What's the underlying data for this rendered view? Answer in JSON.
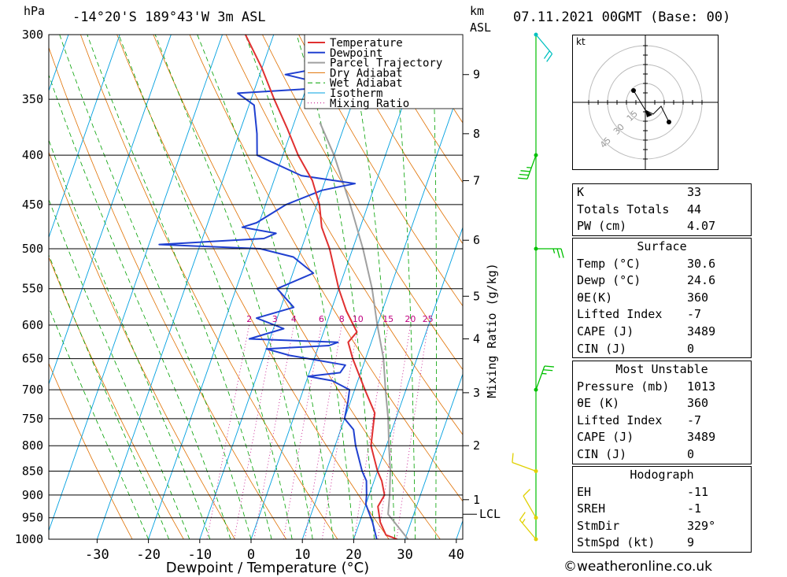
{
  "header": {
    "pressure_unit": "hPa",
    "location": "-14°20'S 189°43'W 3m ASL",
    "height_unit": "km",
    "height_ref": "ASL",
    "datetime": "07.11.2021 00GMT (Base: 00)"
  },
  "footer": {
    "copyright_icon": "copyright-icon",
    "site": "weatheronline.co.uk"
  },
  "chart_data": {
    "type": "line",
    "subtype": "skew-t log-p diagram",
    "xlabel": "Dewpoint / Temperature (°C)",
    "ylabel": "hPa",
    "mixing_ratio_label": "Mixing Ratio (g/kg)",
    "temperature_ticks": [
      -30,
      -20,
      -10,
      0,
      10,
      20,
      30,
      40
    ],
    "pressure_ticks": [
      300,
      350,
      400,
      450,
      500,
      550,
      600,
      650,
      700,
      750,
      800,
      850,
      900,
      950,
      1000
    ],
    "height_ticks_km": [
      {
        "km": "1",
        "p": 910
      },
      {
        "km": "2",
        "p": 800
      },
      {
        "km": "3",
        "p": 705
      },
      {
        "km": "4",
        "p": 620
      },
      {
        "km": "5",
        "p": 560
      },
      {
        "km": "6",
        "p": 490
      },
      {
        "km": "7",
        "p": 425
      },
      {
        "km": "8",
        "p": 380
      },
      {
        "km": "9",
        "p": 330
      }
    ],
    "lcl_label": "LCL",
    "lcl_pressure": 942,
    "mixing_ratio_values": [
      "2",
      "3",
      "4",
      "6",
      "8",
      "10",
      "15",
      "20",
      "25"
    ],
    "legend": [
      "Temperature",
      "Dewpoint",
      "Parcel Trajectory",
      "Dry Adiabat",
      "Wet Adiabat",
      "Isotherm",
      "Mixing Ratio"
    ],
    "legend_placement": "top-right",
    "colors": {
      "temperature": "#e03030",
      "dewpoint": "#2040d0",
      "parcel": "#a0a0a0",
      "dry_adiabat": "#e07000",
      "wet_adiabat": "#00a000",
      "isotherm": "#00a0e0",
      "mixing_ratio": "#c00080",
      "wind_barb": "#00c0c0"
    },
    "temperature_profile": [
      {
        "p": 1000,
        "t": 28.5
      },
      {
        "p": 990,
        "t": 26.0
      },
      {
        "p": 960,
        "t": 24.0
      },
      {
        "p": 925,
        "t": 22.5
      },
      {
        "p": 900,
        "t": 23.0
      },
      {
        "p": 870,
        "t": 21.5
      },
      {
        "p": 850,
        "t": 20.0
      },
      {
        "p": 800,
        "t": 17.0
      },
      {
        "p": 760,
        "t": 16.0
      },
      {
        "p": 740,
        "t": 15.5
      },
      {
        "p": 700,
        "t": 12.0
      },
      {
        "p": 650,
        "t": 7.5
      },
      {
        "p": 625,
        "t": 5.5
      },
      {
        "p": 610,
        "t": 6.5
      },
      {
        "p": 580,
        "t": 3.0
      },
      {
        "p": 550,
        "t": 0.0
      },
      {
        "p": 500,
        "t": -4.5
      },
      {
        "p": 475,
        "t": -7.5
      },
      {
        "p": 450,
        "t": -9.5
      },
      {
        "p": 425,
        "t": -12.5
      },
      {
        "p": 400,
        "t": -17.0
      },
      {
        "p": 375,
        "t": -21.0
      },
      {
        "p": 350,
        "t": -25.5
      },
      {
        "p": 325,
        "t": -30.0
      },
      {
        "p": 300,
        "t": -35.5
      }
    ],
    "dewpoint_profile": [
      {
        "p": 1000,
        "t": 24.5
      },
      {
        "p": 960,
        "t": 22.5
      },
      {
        "p": 920,
        "t": 20.0
      },
      {
        "p": 900,
        "t": 19.5
      },
      {
        "p": 870,
        "t": 18.5
      },
      {
        "p": 850,
        "t": 17.0
      },
      {
        "p": 800,
        "t": 14.0
      },
      {
        "p": 770,
        "t": 12.5
      },
      {
        "p": 750,
        "t": 10.0
      },
      {
        "p": 720,
        "t": 9.5
      },
      {
        "p": 700,
        "t": 9.0
      },
      {
        "p": 685,
        "t": 5.0
      },
      {
        "p": 678,
        "t": 0.0
      },
      {
        "p": 672,
        "t": 6.0
      },
      {
        "p": 660,
        "t": 6.5
      },
      {
        "p": 645,
        "t": -5.0
      },
      {
        "p": 635,
        "t": -10.0
      },
      {
        "p": 630,
        "t": 2.0
      },
      {
        "p": 625,
        "t": 3.5
      },
      {
        "p": 620,
        "t": -14.0
      },
      {
        "p": 605,
        "t": -8.0
      },
      {
        "p": 590,
        "t": -14.0
      },
      {
        "p": 575,
        "t": -7.5
      },
      {
        "p": 550,
        "t": -12.0
      },
      {
        "p": 530,
        "t": -6.0
      },
      {
        "p": 510,
        "t": -11.0
      },
      {
        "p": 500,
        "t": -18.0
      },
      {
        "p": 495,
        "t": -38.0
      },
      {
        "p": 488,
        "t": -18.0
      },
      {
        "p": 482,
        "t": -16.0
      },
      {
        "p": 475,
        "t": -23.0
      },
      {
        "p": 470,
        "t": -20.5
      },
      {
        "p": 450,
        "t": -16.0
      },
      {
        "p": 435,
        "t": -10.0
      },
      {
        "p": 428,
        "t": -4.0
      },
      {
        "p": 420,
        "t": -15.0
      },
      {
        "p": 400,
        "t": -25.0
      },
      {
        "p": 380,
        "t": -26.5
      },
      {
        "p": 355,
        "t": -29.0
      },
      {
        "p": 345,
        "t": -33.0
      },
      {
        "p": 340,
        "t": -14.0
      },
      {
        "p": 330,
        "t": -25.0
      },
      {
        "p": 320,
        "t": -12.0
      },
      {
        "p": 315,
        "t": -11.5
      },
      {
        "p": 300,
        "t": -9.0
      }
    ],
    "parcel_profile": [
      {
        "p": 1000,
        "t": 30.6
      },
      {
        "p": 942,
        "t": 25.0
      },
      {
        "p": 900,
        "t": 24.0
      },
      {
        "p": 850,
        "t": 22.5
      },
      {
        "p": 800,
        "t": 20.5
      },
      {
        "p": 750,
        "t": 18.5
      },
      {
        "p": 700,
        "t": 16.0
      },
      {
        "p": 650,
        "t": 13.5
      },
      {
        "p": 600,
        "t": 10.0
      },
      {
        "p": 550,
        "t": 6.5
      },
      {
        "p": 500,
        "t": 2.0
      },
      {
        "p": 450,
        "t": -3.5
      },
      {
        "p": 400,
        "t": -10.0
      },
      {
        "p": 370,
        "t": -15.0
      }
    ],
    "wind_profile": [
      {
        "p": 1000,
        "dir": 320,
        "kt": 5
      },
      {
        "p": 950,
        "dir": 330,
        "kt": 10
      },
      {
        "p": 850,
        "dir": 290,
        "kt": 10
      },
      {
        "p": 700,
        "dir": 20,
        "kt": 15
      },
      {
        "p": 500,
        "dir": 90,
        "kt": 15
      },
      {
        "p": 400,
        "dir": 200,
        "kt": 25
      },
      {
        "p": 300,
        "dir": 140,
        "kt": 20
      }
    ],
    "hodograph": {
      "unit": "kt",
      "ring_labels": [
        "15",
        "30",
        "45"
      ],
      "points": [
        {
          "u": -3,
          "v": 3
        },
        {
          "u": 0,
          "v": -2
        },
        {
          "u": 2,
          "v": -3
        },
        {
          "u": 4,
          "v": -1
        },
        {
          "u": 6,
          "v": -5
        }
      ],
      "storm_motion": {
        "u": 1,
        "v": -3
      }
    }
  },
  "indices": [
    {
      "key": "K",
      "value": "33"
    },
    {
      "key": "Totals Totals",
      "value": "44"
    },
    {
      "key": "PW (cm)",
      "value": "4.07"
    }
  ],
  "surface": {
    "title": "Surface",
    "rows": [
      {
        "key": "Temp (°C)",
        "value": "30.6"
      },
      {
        "key": "Dewp (°C)",
        "value": "24.6"
      },
      {
        "key": "θE(K)",
        "value": "360"
      },
      {
        "key": "Lifted Index",
        "value": "-7"
      },
      {
        "key": "CAPE (J)",
        "value": "3489"
      },
      {
        "key": "CIN (J)",
        "value": "0"
      }
    ]
  },
  "most_unstable": {
    "title": "Most Unstable",
    "rows": [
      {
        "key": "Pressure (mb)",
        "value": "1013"
      },
      {
        "key": "θE (K)",
        "value": "360"
      },
      {
        "key": "Lifted Index",
        "value": "-7"
      },
      {
        "key": "CAPE (J)",
        "value": "3489"
      },
      {
        "key": "CIN (J)",
        "value": "0"
      }
    ]
  },
  "hodograph_table": {
    "title": "Hodograph",
    "rows": [
      {
        "key": "EH",
        "value": "-11"
      },
      {
        "key": "SREH",
        "value": "-1"
      },
      {
        "key": "StmDir",
        "value": "329°"
      },
      {
        "key": "StmSpd (kt)",
        "value": "9"
      }
    ]
  }
}
